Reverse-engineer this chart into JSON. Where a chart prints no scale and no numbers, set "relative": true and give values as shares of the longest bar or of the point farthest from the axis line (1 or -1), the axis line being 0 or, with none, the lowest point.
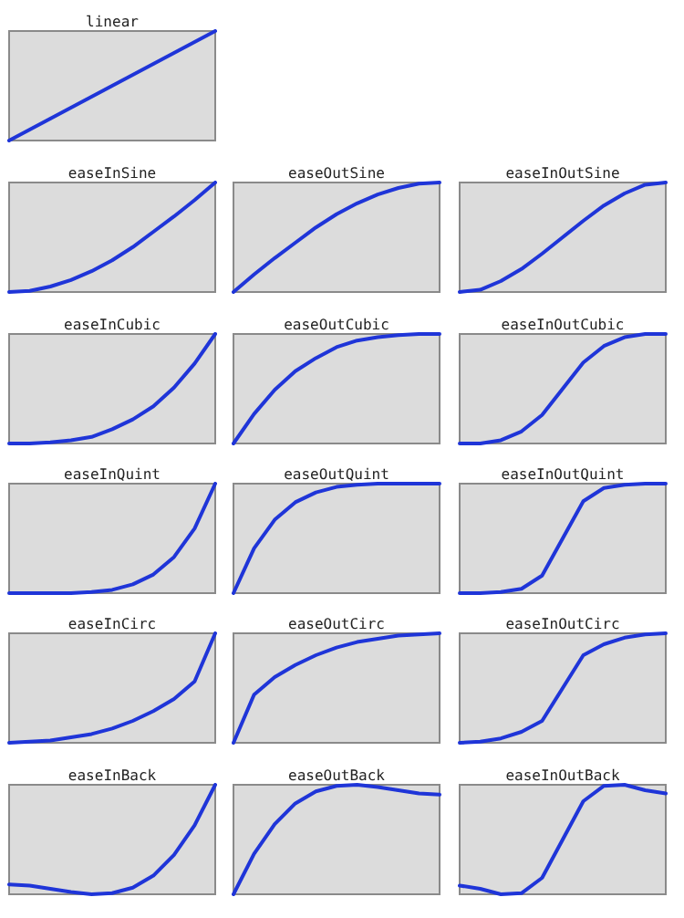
{
  "chart_data": [
    {
      "type": "line",
      "title": "linear",
      "relative": true,
      "categories": [
        null,
        null,
        null,
        null,
        null,
        null,
        null,
        null,
        null,
        null,
        null
      ],
      "series": [
        {
          "color": "#1f35d8",
          "values": [
            0,
            0.1,
            0.2,
            0.3,
            0.4,
            0.5,
            0.6,
            0.7,
            0.8,
            0.9,
            1
          ]
        }
      ]
    },
    {
      "type": "line",
      "title": "easeInSine",
      "relative": true,
      "categories": [
        null,
        null,
        null,
        null,
        null,
        null,
        null,
        null,
        null,
        null,
        null
      ],
      "series": [
        {
          "color": "#1f35d8",
          "values": [
            0,
            0.01,
            0.05,
            0.11,
            0.19,
            0.29,
            0.41,
            0.55,
            0.69,
            0.84,
            1
          ]
        }
      ]
    },
    {
      "type": "line",
      "title": "easeOutSine",
      "relative": true,
      "categories": [
        null,
        null,
        null,
        null,
        null,
        null,
        null,
        null,
        null,
        null,
        null
      ],
      "series": [
        {
          "color": "#1f35d8",
          "values": [
            0,
            0.16,
            0.31,
            0.45,
            0.59,
            0.71,
            0.81,
            0.89,
            0.95,
            0.99,
            1
          ]
        }
      ]
    },
    {
      "type": "line",
      "title": "easeInOutSine",
      "relative": true,
      "categories": [
        null,
        null,
        null,
        null,
        null,
        null,
        null,
        null,
        null,
        null,
        null
      ],
      "series": [
        {
          "color": "#1f35d8",
          "values": [
            0,
            0.02,
            0.1,
            0.21,
            0.35,
            0.5,
            0.65,
            0.79,
            0.9,
            0.98,
            1
          ]
        }
      ]
    },
    {
      "type": "line",
      "title": "easeInCubic",
      "relative": true,
      "categories": [
        null,
        null,
        null,
        null,
        null,
        null,
        null,
        null,
        null,
        null,
        null
      ],
      "series": [
        {
          "color": "#1f35d8",
          "values": [
            0,
            0,
            0.01,
            0.03,
            0.06,
            0.13,
            0.22,
            0.34,
            0.51,
            0.73,
            1
          ]
        }
      ]
    },
    {
      "type": "line",
      "title": "easeOutCubic",
      "relative": true,
      "categories": [
        null,
        null,
        null,
        null,
        null,
        null,
        null,
        null,
        null,
        null,
        null
      ],
      "series": [
        {
          "color": "#1f35d8",
          "values": [
            0,
            0.27,
            0.49,
            0.66,
            0.78,
            0.88,
            0.94,
            0.97,
            0.99,
            1,
            1
          ]
        }
      ]
    },
    {
      "type": "line",
      "title": "easeInOutCubic",
      "relative": true,
      "categories": [
        null,
        null,
        null,
        null,
        null,
        null,
        null,
        null,
        null,
        null,
        null
      ],
      "series": [
        {
          "color": "#1f35d8",
          "values": [
            0,
            0,
            0.03,
            0.11,
            0.26,
            0.5,
            0.74,
            0.89,
            0.97,
            1,
            1
          ]
        }
      ]
    },
    {
      "type": "line",
      "title": "easeInQuint",
      "relative": true,
      "categories": [
        null,
        null,
        null,
        null,
        null,
        null,
        null,
        null,
        null,
        null,
        null
      ],
      "series": [
        {
          "color": "#1f35d8",
          "values": [
            0,
            0,
            0,
            0,
            0.01,
            0.03,
            0.08,
            0.17,
            0.33,
            0.59,
            1
          ]
        }
      ]
    },
    {
      "type": "line",
      "title": "easeOutQuint",
      "relative": true,
      "categories": [
        null,
        null,
        null,
        null,
        null,
        null,
        null,
        null,
        null,
        null,
        null
      ],
      "series": [
        {
          "color": "#1f35d8",
          "values": [
            0,
            0.41,
            0.67,
            0.83,
            0.92,
            0.97,
            0.99,
            1,
            1,
            1,
            1
          ]
        }
      ]
    },
    {
      "type": "line",
      "title": "easeInOutQuint",
      "relative": true,
      "categories": [
        null,
        null,
        null,
        null,
        null,
        null,
        null,
        null,
        null,
        null,
        null
      ],
      "series": [
        {
          "color": "#1f35d8",
          "values": [
            0,
            0,
            0.01,
            0.04,
            0.16,
            0.5,
            0.84,
            0.96,
            0.99,
            1,
            1
          ]
        }
      ]
    },
    {
      "type": "line",
      "title": "easeInCirc",
      "relative": true,
      "categories": [
        null,
        null,
        null,
        null,
        null,
        null,
        null,
        null,
        null,
        null,
        null
      ],
      "series": [
        {
          "color": "#1f35d8",
          "values": [
            0,
            0.01,
            0.02,
            0.05,
            0.08,
            0.13,
            0.2,
            0.29,
            0.4,
            0.56,
            1
          ]
        }
      ]
    },
    {
      "type": "line",
      "title": "easeOutCirc",
      "relative": true,
      "categories": [
        null,
        null,
        null,
        null,
        null,
        null,
        null,
        null,
        null,
        null,
        null
      ],
      "series": [
        {
          "color": "#1f35d8",
          "values": [
            0,
            0.44,
            0.6,
            0.71,
            0.8,
            0.87,
            0.92,
            0.95,
            0.98,
            0.99,
            1
          ]
        }
      ]
    },
    {
      "type": "line",
      "title": "easeInOutCirc",
      "relative": true,
      "categories": [
        null,
        null,
        null,
        null,
        null,
        null,
        null,
        null,
        null,
        null,
        null
      ],
      "series": [
        {
          "color": "#1f35d8",
          "values": [
            0,
            0.01,
            0.04,
            0.1,
            0.2,
            0.5,
            0.8,
            0.9,
            0.96,
            0.99,
            1
          ]
        }
      ]
    },
    {
      "type": "line",
      "title": "easeInBack",
      "relative": true,
      "categories": [
        null,
        null,
        null,
        null,
        null,
        null,
        null,
        null,
        null,
        null,
        null
      ],
      "series": [
        {
          "color": "#1f35d8",
          "values": [
            0.09,
            0.08,
            0.05,
            0.02,
            0,
            0.01,
            0.06,
            0.17,
            0.36,
            0.63,
            1
          ]
        }
      ]
    },
    {
      "type": "line",
      "title": "easeOutBack",
      "relative": true,
      "categories": [
        null,
        null,
        null,
        null,
        null,
        null,
        null,
        null,
        null,
        null,
        null
      ],
      "series": [
        {
          "color": "#1f35d8",
          "values": [
            0,
            0.37,
            0.64,
            0.83,
            0.94,
            0.99,
            1,
            0.98,
            0.95,
            0.92,
            0.91
          ]
        }
      ]
    },
    {
      "type": "line",
      "title": "easeInOutBack",
      "relative": true,
      "categories": [
        null,
        null,
        null,
        null,
        null,
        null,
        null,
        null,
        null,
        null,
        null
      ],
      "series": [
        {
          "color": "#1f35d8",
          "values": [
            0.08,
            0.05,
            0,
            0.01,
            0.15,
            0.5,
            0.85,
            0.99,
            1,
            0.95,
            0.92
          ]
        }
      ]
    }
  ]
}
